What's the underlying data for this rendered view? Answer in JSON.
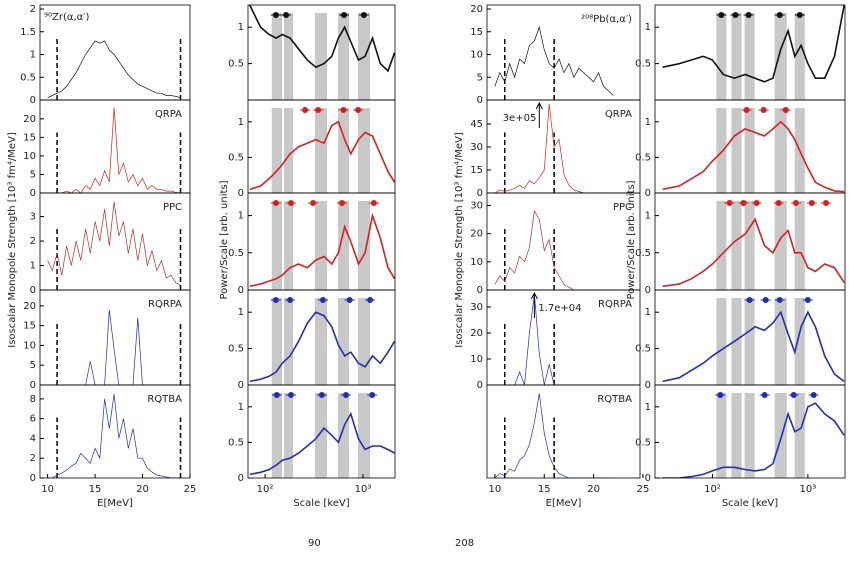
{
  "chart_data": [
    {
      "type": "line",
      "xlabel": "E[MeV]",
      "ylabel": "Isoscalar Monopole Strength [10³ fm⁴/MeV]",
      "xlim": [
        9.2,
        25
      ],
      "xticks": [
        10,
        15,
        20,
        25
      ],
      "dashed_x": [
        11,
        24
      ],
      "x": [
        10,
        10.5,
        11,
        11.5,
        12,
        12.5,
        13,
        13.5,
        14,
        14.5,
        15,
        15.5,
        16,
        16.5,
        17,
        17.5,
        18,
        18.5,
        19,
        19.5,
        20,
        20.5,
        21,
        21.5,
        22,
        22.5,
        23,
        23.5,
        24
      ],
      "panels": [
        {
          "label": "⁹⁰Zr(α,α′)",
          "color": "#111111",
          "ylim": [
            0,
            2
          ],
          "yticks": [
            0,
            0.5,
            1,
            1.5,
            2
          ],
          "values": [
            0.05,
            0.1,
            0.15,
            0.2,
            0.3,
            0.45,
            0.6,
            0.8,
            1.0,
            1.15,
            1.3,
            1.25,
            1.3,
            1.1,
            1.0,
            0.85,
            0.7,
            0.55,
            0.45,
            0.35,
            0.3,
            0.25,
            0.2,
            0.15,
            0.15,
            0.1,
            0.1,
            0.08,
            0.05
          ]
        },
        {
          "label": "QRPA",
          "color": "#d62020",
          "ylim": [
            0,
            24
          ],
          "yticks": [
            0,
            5,
            10,
            15,
            20
          ],
          "values": [
            0,
            0,
            0,
            0,
            0.5,
            0,
            1,
            0,
            2,
            1,
            4,
            2,
            6,
            3,
            23,
            5,
            8,
            3,
            5,
            2,
            4,
            1,
            2,
            1,
            1,
            0.5,
            0.5,
            0.2,
            0
          ]
        },
        {
          "label": "PPC",
          "color": "#b03030",
          "ylim": [
            0,
            3.8
          ],
          "yticks": [
            0,
            1,
            2,
            3
          ],
          "values": [
            1.2,
            0.8,
            1.5,
            0.6,
            1.8,
            1.0,
            2.0,
            1.2,
            2.5,
            1.5,
            2.8,
            2.0,
            3.3,
            1.8,
            3.6,
            2.2,
            2.8,
            1.5,
            2.5,
            1.2,
            2.3,
            1.0,
            1.6,
            0.8,
            1.2,
            0.5,
            0.6,
            0.3,
            0.2
          ]
        },
        {
          "label": "RQRPA",
          "color": "#2030b0",
          "ylim": [
            0,
            23
          ],
          "yticks": [
            0,
            5,
            10,
            15,
            20
          ],
          "values": [
            0,
            0,
            0,
            0,
            0,
            0,
            0,
            0,
            0,
            6,
            0,
            0,
            0,
            19,
            9,
            0,
            0,
            0,
            0,
            17,
            0,
            0,
            0,
            0,
            0,
            0,
            0,
            0,
            0
          ]
        },
        {
          "label": "RQTBA",
          "color": "#2030b0",
          "ylim": [
            0,
            9
          ],
          "yticks": [
            0,
            2,
            4,
            6,
            8
          ],
          "values": [
            0,
            0,
            0.3,
            0.5,
            0.8,
            1.2,
            1.5,
            2.5,
            2.0,
            1.5,
            3,
            2,
            8,
            5,
            8.5,
            4,
            6,
            3,
            5,
            2,
            2,
            1,
            0.6,
            0.3,
            0.2,
            0.1,
            0,
            0,
            0
          ]
        }
      ]
    },
    {
      "type": "line",
      "log": true,
      "xlabel": "Scale [keV]",
      "ylabel": "Power/Scale [arb. units]",
      "xlim": [
        67,
        2120
      ],
      "xticks": [
        {
          "value": 100,
          "label": "10²"
        },
        {
          "value": 1000,
          "label": "10³"
        }
      ],
      "bands": [
        [
          117,
          149
        ],
        [
          156,
          193
        ],
        [
          323,
          429
        ],
        [
          556,
          719
        ],
        [
          889,
          1180
        ]
      ],
      "x": [
        70,
        90,
        110,
        130,
        150,
        180,
        220,
        270,
        330,
        400,
        480,
        560,
        650,
        750,
        900,
        1050,
        1250,
        1500,
        1800,
        2100
      ],
      "panels": [
        {
          "color": "#111111",
          "ylim": [
            0,
            1.25
          ],
          "yticks": [
            0.5,
            1
          ],
          "dots": [
            129,
            164,
            640,
            1020
          ],
          "values": [
            1.3,
            1.0,
            0.9,
            0.85,
            0.9,
            0.85,
            0.7,
            0.55,
            0.45,
            0.5,
            0.6,
            0.85,
            1.0,
            0.8,
            0.55,
            0.6,
            0.85,
            0.5,
            0.4,
            0.65
          ]
        },
        {
          "color": "#d62020",
          "ylim": [
            0,
            1.25
          ],
          "yticks": [
            0,
            0.5,
            1
          ],
          "dots": [
            256,
            348,
            632,
            890
          ],
          "values": [
            0.05,
            0.1,
            0.2,
            0.3,
            0.4,
            0.55,
            0.65,
            0.7,
            0.75,
            0.7,
            0.95,
            1.0,
            0.75,
            0.55,
            0.75,
            0.85,
            0.8,
            0.55,
            0.3,
            0.15
          ]
        },
        {
          "color": "#d62020",
          "ylim": [
            0,
            1.25
          ],
          "yticks": [
            0,
            0.5,
            1
          ],
          "dots": [
            129,
            184,
            309,
            610,
            1290
          ],
          "values": [
            0.05,
            0.08,
            0.12,
            0.15,
            0.2,
            0.3,
            0.35,
            0.3,
            0.4,
            0.45,
            0.35,
            0.5,
            0.85,
            0.65,
            0.35,
            0.5,
            1.0,
            0.7,
            0.3,
            0.15
          ]
        },
        {
          "color": "#2030b0",
          "ylim": [
            0,
            1.25
          ],
          "yticks": [
            0,
            0.5,
            1
          ],
          "dots": [
            129,
            180,
            390,
            730,
            1180
          ],
          "values": [
            0.05,
            0.08,
            0.12,
            0.18,
            0.3,
            0.4,
            0.6,
            0.85,
            1.0,
            0.95,
            0.8,
            0.55,
            0.4,
            0.45,
            0.3,
            0.25,
            0.4,
            0.3,
            0.45,
            0.6
          ]
        },
        {
          "color": "#2030b0",
          "ylim": [
            0,
            1.25
          ],
          "yticks": [
            0,
            0.5,
            1
          ],
          "dots": [
            132,
            184,
            380,
            670,
            1240
          ],
          "values": [
            0.05,
            0.08,
            0.12,
            0.18,
            0.25,
            0.28,
            0.35,
            0.45,
            0.55,
            0.7,
            0.6,
            0.5,
            0.75,
            0.9,
            0.55,
            0.4,
            0.45,
            0.45,
            0.4,
            0.35
          ]
        }
      ]
    },
    {
      "type": "line",
      "xlabel": "E[MeV]",
      "ylabel": "Isoscalar Monopole Strength [10³ fm⁴/MeV]",
      "xlim": [
        9.2,
        24.7
      ],
      "xticks": [
        10,
        15,
        20,
        25
      ],
      "dashed_x": [
        11,
        16
      ],
      "x": [
        10,
        10.5,
        11,
        11.5,
        12,
        12.5,
        13,
        13.5,
        14,
        14.5,
        15,
        15.5,
        16,
        16.5,
        17,
        17.5,
        18,
        18.5,
        19,
        19.5,
        20,
        20.5,
        21,
        21.5,
        22
      ],
      "panels": [
        {
          "label": "²⁰⁸Pb(α,α′)",
          "color": "#111111",
          "ylim": [
            0,
            20
          ],
          "yticks": [
            0,
            5,
            10,
            15,
            20
          ],
          "values": [
            3,
            6,
            4,
            8,
            5,
            9,
            8,
            12,
            13,
            16,
            11,
            8,
            7,
            9,
            6,
            8,
            5,
            7,
            6,
            5,
            4,
            6,
            3,
            2,
            1
          ]
        },
        {
          "label": "QRPA",
          "color": "#d62020",
          "ylim": [
            0,
            58
          ],
          "yticks": [
            0,
            15,
            30,
            45
          ],
          "annotation": {
            "text": "3e+05",
            "x": 14.5
          },
          "values": [
            0,
            2,
            1,
            2,
            3,
            5,
            3,
            8,
            6,
            10,
            15,
            58,
            30,
            35,
            12,
            5,
            2,
            1,
            0,
            0,
            0,
            0,
            0,
            0,
            0
          ]
        },
        {
          "label": "PPC",
          "color": "#b03030",
          "ylim": [
            0,
            33
          ],
          "yticks": [
            0,
            10,
            20,
            30
          ],
          "values": [
            2,
            5,
            3,
            8,
            6,
            12,
            10,
            15,
            28,
            25,
            14,
            18,
            8,
            5,
            2,
            1,
            0,
            0,
            0,
            0,
            0,
            0,
            0,
            0,
            0
          ]
        },
        {
          "label": "RQRPA",
          "color": "#2030b0",
          "ylim": [
            0,
            35
          ],
          "yticks": [
            0,
            10,
            20,
            30
          ],
          "annotation": {
            "text": "1.7e+04",
            "x": 14
          },
          "values": [
            0,
            0,
            0,
            0,
            0,
            5,
            0,
            20,
            35,
            12,
            0,
            8,
            0,
            0,
            0,
            0,
            0,
            0,
            0,
            0,
            0,
            0,
            0,
            0,
            0
          ]
        },
        {
          "label": "RQTBA",
          "color": "#2030b0",
          "ylim": [
            0,
            40
          ],
          "values": [
            0,
            2,
            1,
            4,
            3,
            8,
            10,
            15,
            25,
            38,
            20,
            10,
            5,
            2,
            1,
            0,
            0,
            0,
            0,
            0,
            0,
            0,
            0,
            0,
            0
          ]
        }
      ]
    },
    {
      "type": "line",
      "log": true,
      "xlabel": "Scale [keV]",
      "ylabel": "Power/Scale [arb. units]",
      "xlim": [
        25,
        2450
      ],
      "xticks": [
        {
          "value": 100,
          "label": "10²"
        },
        {
          "value": 1000,
          "label": "10³"
        }
      ],
      "bands": [
        [
          110,
          140
        ],
        [
          158,
          202
        ],
        [
          217,
          277
        ],
        [
          449,
          601
        ],
        [
          729,
          930
        ]
      ],
      "x": [
        30,
        45,
        60,
        80,
        100,
        130,
        170,
        220,
        280,
        350,
        430,
        520,
        620,
        730,
        850,
        1000,
        1200,
        1500,
        1900,
        2400
      ],
      "panels": [
        {
          "color": "#111111",
          "ylim": [
            0,
            1.25
          ],
          "yticks": [
            0.5,
            1
          ],
          "dots": [
            124,
            174,
            239,
            507,
            823
          ],
          "values": [
            0.45,
            0.5,
            0.55,
            0.6,
            0.55,
            0.35,
            0.3,
            0.35,
            0.3,
            0.25,
            0.3,
            0.7,
            0.95,
            0.6,
            0.75,
            0.5,
            0.3,
            0.3,
            0.6,
            1.3
          ]
        },
        {
          "color": "#d62020",
          "ylim": [
            0,
            1.25
          ],
          "yticks": [
            0,
            0.5,
            1
          ],
          "dots": [
            228,
            344,
            587
          ],
          "values": [
            0.05,
            0.1,
            0.2,
            0.3,
            0.45,
            0.6,
            0.8,
            0.9,
            0.85,
            0.8,
            0.9,
            1.0,
            0.9,
            0.75,
            0.55,
            0.35,
            0.15,
            0.08,
            0.03,
            0.02
          ]
        },
        {
          "color": "#d62020",
          "ylim": [
            0,
            1.25
          ],
          "yticks": [
            0,
            0.5,
            1
          ],
          "dots": [
            151,
            212,
            290,
            495,
            750,
            1100,
            1550
          ],
          "values": [
            0.05,
            0.08,
            0.15,
            0.25,
            0.35,
            0.5,
            0.65,
            0.75,
            0.95,
            0.6,
            0.5,
            0.7,
            0.8,
            0.5,
            0.5,
            0.3,
            0.25,
            0.35,
            0.3,
            0.1
          ]
        },
        {
          "color": "#2030b0",
          "ylim": [
            0,
            1.25
          ],
          "yticks": [
            0,
            0.5,
            1
          ],
          "dots": [
            245,
            361,
            507,
            1000
          ],
          "values": [
            0.05,
            0.1,
            0.2,
            0.3,
            0.4,
            0.5,
            0.6,
            0.7,
            0.8,
            0.75,
            0.85,
            1.0,
            0.7,
            0.45,
            0.8,
            1.0,
            0.8,
            0.4,
            0.15,
            0.05
          ]
        },
        {
          "color": "#2030b0",
          "ylim": [
            0,
            1.25
          ],
          "yticks": [
            0,
            0.5,
            1
          ],
          "dots": [
            121,
            352,
            710,
            1150
          ],
          "values": [
            0,
            0,
            0.02,
            0.05,
            0.1,
            0.15,
            0.15,
            0.12,
            0.1,
            0.12,
            0.2,
            0.55,
            0.9,
            0.65,
            0.7,
            1.0,
            1.05,
            0.9,
            0.8,
            0.6
          ]
        }
      ]
    }
  ],
  "caption_fragments": [
    "90",
    "208"
  ]
}
